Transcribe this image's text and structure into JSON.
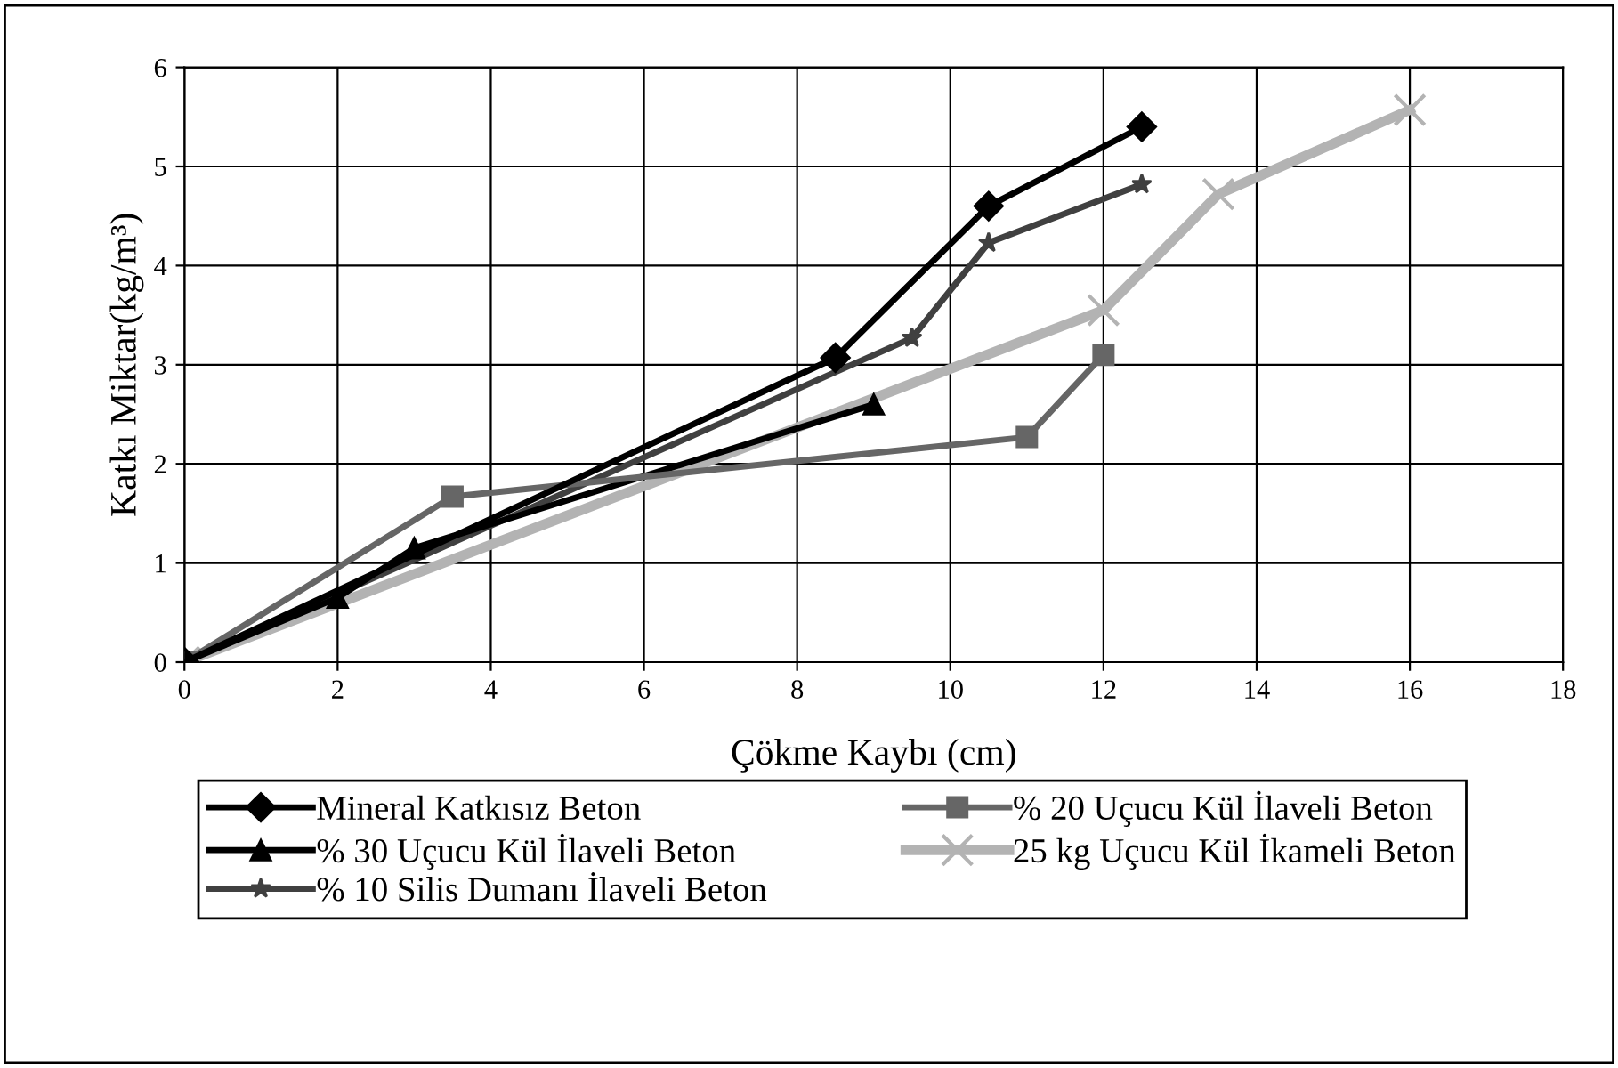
{
  "chart_data": {
    "type": "line",
    "xlabel": "Çökme Kaybı (cm)",
    "ylabel": "Katkı Miktar(kg/m³)",
    "xlim": [
      0,
      18
    ],
    "xticks": [
      0,
      2,
      4,
      6,
      8,
      10,
      12,
      14,
      16,
      18
    ],
    "ylim": [
      0,
      6
    ],
    "yticks": [
      0,
      1,
      2,
      3,
      4,
      5,
      6
    ],
    "grid": true,
    "legend": "bottom",
    "series": [
      {
        "name": "Mineral Katkısız Beton",
        "color": "#000000",
        "marker": "diamond",
        "x": [
          0,
          8.5,
          10.5,
          12.5
        ],
        "values": [
          0,
          3.07,
          4.6,
          5.4
        ]
      },
      {
        "name": "% 20 Uçucu Kül İlaveli Beton",
        "color": "#666666",
        "marker": "square",
        "x": [
          0,
          3.5,
          11,
          12
        ],
        "values": [
          0,
          1.67,
          2.27,
          3.1
        ]
      },
      {
        "name": "% 30 Uçucu Kül İlaveli Beton",
        "color": "#000000",
        "marker": "triangle",
        "x": [
          0,
          2,
          3,
          9
        ],
        "values": [
          0,
          0.65,
          1.15,
          2.6
        ]
      },
      {
        "name": "25 kg Uçucu Kül İkameli Beton",
        "color": "#b3b3b3",
        "marker": "cross",
        "x": [
          0,
          12,
          13.5,
          16
        ],
        "values": [
          0,
          3.55,
          4.72,
          5.57
        ]
      },
      {
        "name": "% 10 Silis Dumanı İlaveli Beton",
        "color": "#404040",
        "marker": "star",
        "x": [
          0,
          9.5,
          10.5,
          12.5
        ],
        "values": [
          0,
          3.27,
          4.23,
          4.82
        ]
      }
    ]
  }
}
